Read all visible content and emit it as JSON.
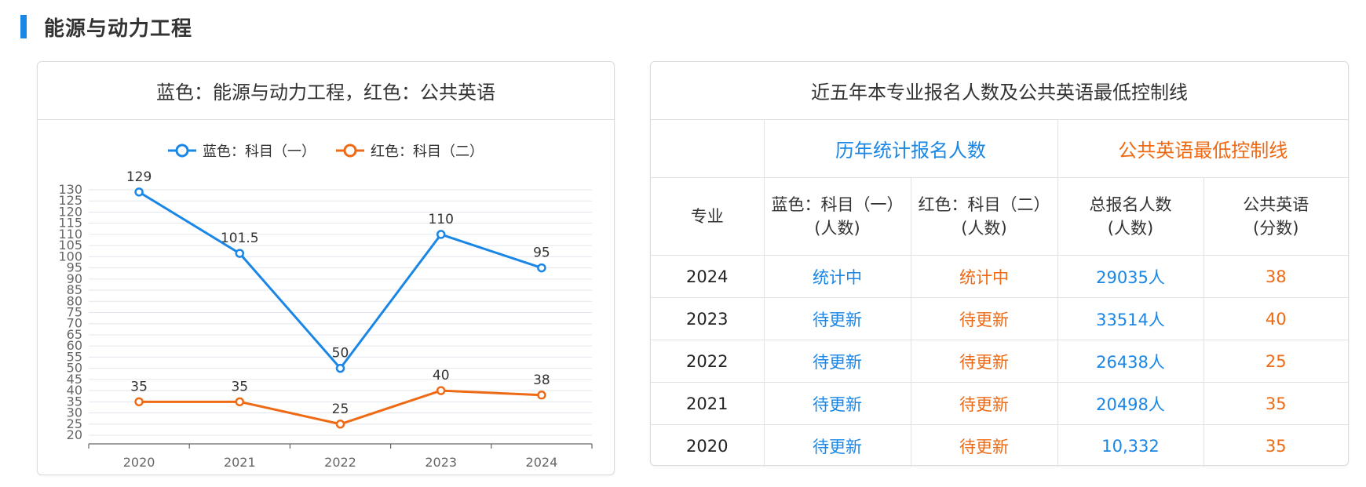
{
  "section": {
    "title": "能源与动力工程"
  },
  "chart_panel": {
    "title": "蓝色：能源与动力工程，红色：公共英语"
  },
  "colors": {
    "blue": "#1a86e6",
    "orange": "#ee6a14",
    "accent": "#1a86e6"
  },
  "chart_data": {
    "type": "line",
    "categories": [
      "2020",
      "2021",
      "2022",
      "2023",
      "2024"
    ],
    "series": [
      {
        "name": "蓝色：科目（一）",
        "color": "#1a86e6",
        "values": [
          129,
          101.5,
          50,
          110,
          95
        ],
        "labels": [
          "129",
          "101.5",
          "50",
          "110",
          "95"
        ]
      },
      {
        "name": "红色：科目（二）",
        "color": "#ee6a14",
        "values": [
          35,
          35,
          25,
          40,
          38
        ],
        "labels": [
          "35",
          "35",
          "25",
          "40",
          "38"
        ]
      }
    ],
    "ylim": [
      20,
      130
    ],
    "yticks": [
      "130",
      "125",
      "120",
      "115",
      "110",
      "105",
      "100",
      "95",
      "90",
      "85",
      "80",
      "75",
      "70",
      "65",
      "60",
      "55",
      "50",
      "45",
      "40",
      "35",
      "30",
      "25",
      "20"
    ],
    "legend": "top-center",
    "grid": true
  },
  "table_panel": {
    "title": "近五年本专业报名人数及公共英语最低控制线",
    "group_headers": {
      "stats": "历年统计报名人数",
      "english": "公共英语最低控制线"
    },
    "columns": {
      "major": "专业",
      "subject1": [
        "蓝色：科目（一）",
        "(人数)"
      ],
      "subject2": [
        "红色：科目（二）",
        "(人数)"
      ],
      "total": [
        "总报名人数",
        "(人数)"
      ],
      "english": [
        "公共英语",
        "(分数)"
      ]
    },
    "rows": [
      {
        "year": "2024",
        "s1": "统计中",
        "s2": "统计中",
        "total": "29035人",
        "english": "38"
      },
      {
        "year": "2023",
        "s1": "待更新",
        "s2": "待更新",
        "total": "33514人",
        "english": "40"
      },
      {
        "year": "2022",
        "s1": "待更新",
        "s2": "待更新",
        "total": "26438人",
        "english": "25"
      },
      {
        "year": "2021",
        "s1": "待更新",
        "s2": "待更新",
        "total": "20498人",
        "english": "35"
      },
      {
        "year": "2020",
        "s1": "待更新",
        "s2": "待更新",
        "total": "10,332",
        "english": "35"
      }
    ]
  }
}
